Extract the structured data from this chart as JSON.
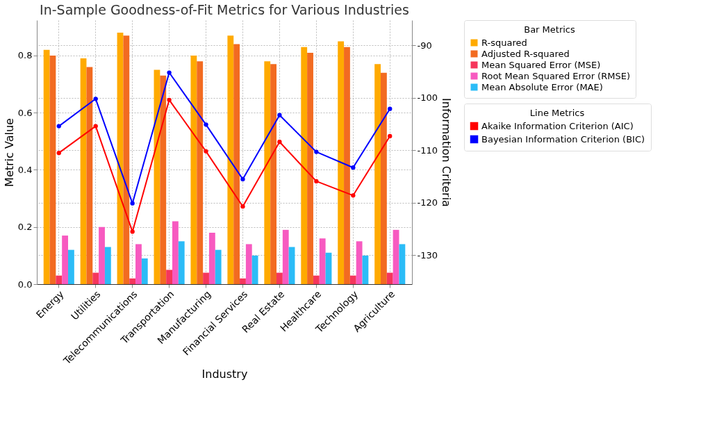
{
  "chart_data": {
    "type": "bar",
    "title": "In-Sample Goodness-of-Fit Metrics for Various Industries",
    "xlabel": "Industry",
    "ylabel": "Metric Value",
    "y2label": "Information Criteria",
    "legend_title": [
      "Bar Metrics",
      "Line Metrics"
    ],
    "categories": [
      "Energy",
      "Utilities",
      "Telecommunications",
      "Transportation",
      "Manufacturing",
      "Financial Services",
      "Real Estate",
      "Healthcare",
      "Technology",
      "Agriculture"
    ],
    "series": [
      {
        "name": "R-squared",
        "color": "#ffaa00",
        "values": [
          0.82,
          0.79,
          0.88,
          0.75,
          0.8,
          0.87,
          0.78,
          0.83,
          0.85,
          0.77
        ]
      },
      {
        "name": "Adjusted R-squared",
        "color": "#f26b21",
        "values": [
          0.8,
          0.76,
          0.87,
          0.73,
          0.78,
          0.84,
          0.77,
          0.81,
          0.83,
          0.74
        ]
      },
      {
        "name": "Mean Squared Error (MSE)",
        "color": "#f5365c",
        "values": [
          0.03,
          0.04,
          0.02,
          0.05,
          0.04,
          0.02,
          0.04,
          0.03,
          0.03,
          0.04
        ]
      },
      {
        "name": "Root Mean Squared Error (RMSE)",
        "color": "#f75ac0",
        "values": [
          0.17,
          0.2,
          0.14,
          0.22,
          0.18,
          0.14,
          0.19,
          0.16,
          0.15,
          0.19
        ]
      },
      {
        "name": "Mean Absolute Error (MAE)",
        "color": "#2bbcf7",
        "values": [
          0.12,
          0.13,
          0.09,
          0.15,
          0.12,
          0.1,
          0.13,
          0.11,
          0.1,
          0.14
        ]
      },
      {
        "name": "Akaike Information Criterion (AIC)",
        "color": "#ff0000",
        "type": "line",
        "axis": "y2",
        "values": [
          -110.5,
          -105.4,
          -125.5,
          -100.4,
          -110.2,
          -120.7,
          -108.4,
          -115.9,
          -118.6,
          -107.3
        ]
      },
      {
        "name": "Bayesian Information Criterion (BIC)",
        "color": "#0000ff",
        "type": "line",
        "axis": "y2",
        "values": [
          -105.4,
          -100.2,
          -120.1,
          -95.2,
          -105.1,
          -115.5,
          -103.3,
          -110.3,
          -113.3,
          -102.1
        ]
      }
    ],
    "ylim": [
      0,
      0.924
    ],
    "yticks": [
      {
        "value": 0,
        "label": "0.0"
      },
      {
        "value": 0.2,
        "label": "0.2"
      },
      {
        "value": 0.4,
        "label": "0.4"
      },
      {
        "value": 0.6,
        "label": "0.6"
      },
      {
        "value": 0.8,
        "label": "0.8"
      }
    ],
    "y2lim": [
      -135.5,
      -85.2
    ],
    "y2ticks": [
      -130,
      -120,
      -110,
      -100,
      -90
    ],
    "grid": true,
    "legend": "right",
    "marker": "circle",
    "line_style": "solid"
  }
}
